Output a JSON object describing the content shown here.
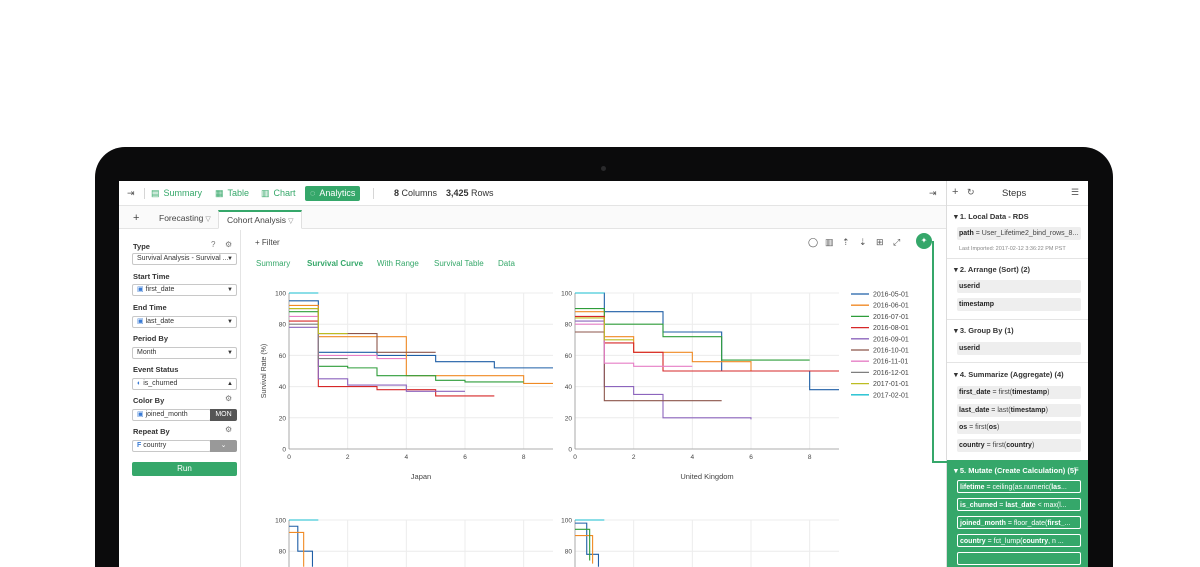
{
  "topbar": {
    "items": [
      {
        "label": "Summary",
        "icon": "summary-icon"
      },
      {
        "label": "Table",
        "icon": "table-icon"
      },
      {
        "label": "Chart",
        "icon": "chart-icon"
      },
      {
        "label": "Analytics",
        "icon": "lightbulb-icon"
      }
    ],
    "columns_count": "8",
    "columns_label": "Columns",
    "rows_count": "3,425",
    "rows_label": "Rows"
  },
  "tabs": {
    "add": "+",
    "items": [
      {
        "label": "Forecasting"
      },
      {
        "label": "Cohort Analysis"
      }
    ]
  },
  "left_panel": {
    "type_label": "Type",
    "type_value": "Survival Analysis - Survival ...",
    "start_label": "Start Time",
    "start_value": "first_date",
    "end_label": "End Time",
    "end_value": "last_date",
    "period_label": "Period By",
    "period_value": "Month",
    "event_label": "Event Status",
    "event_value": "is_churned",
    "color_label": "Color By",
    "color_value": "joined_month",
    "color_badge": "MON",
    "repeat_label": "Repeat By",
    "repeat_value": "country",
    "repeat_badge": "F",
    "run_label": "Run"
  },
  "main": {
    "filter_label": "Filter",
    "subtabs": [
      "Summary",
      "Survival Curve",
      "With Range",
      "Survival Table",
      "Data"
    ],
    "active_subtab": "Survival Curve"
  },
  "chart_data": {
    "type": "line",
    "ylabel": "Survival Rate (%)",
    "yticks": [
      0,
      20,
      40,
      60,
      80,
      100
    ],
    "xticks": [
      0,
      2,
      4,
      6,
      8
    ],
    "xlim": [
      0,
      9
    ],
    "ylim": [
      0,
      100
    ],
    "legend_position": "right",
    "legend": [
      {
        "name": "2016-05-01",
        "color": "#1f5fa6"
      },
      {
        "name": "2016-06-01",
        "color": "#f08a24"
      },
      {
        "name": "2016-07-01",
        "color": "#2e9d3a"
      },
      {
        "name": "2016-08-01",
        "color": "#d62728"
      },
      {
        "name": "2016-09-01",
        "color": "#8c64bd"
      },
      {
        "name": "2016-10-01",
        "color": "#8c564b"
      },
      {
        "name": "2016-11-01",
        "color": "#e67fc6"
      },
      {
        "name": "2016-12-01",
        "color": "#7f7f7f"
      },
      {
        "name": "2017-01-01",
        "color": "#bcbd22"
      },
      {
        "name": "2017-02-01",
        "color": "#17becf"
      }
    ],
    "panels": [
      {
        "label": "Japan",
        "series": [
          {
            "name": "2016-05-01",
            "color": "#1f5fa6",
            "points": [
              [
                0,
                95
              ],
              [
                1,
                62
              ],
              [
                3,
                60
              ],
              [
                5,
                56
              ],
              [
                6,
                56
              ],
              [
                7,
                52
              ],
              [
                9,
                52
              ]
            ]
          },
          {
            "name": "2016-06-01",
            "color": "#f08a24",
            "points": [
              [
                0,
                92
              ],
              [
                1,
                72
              ],
              [
                4,
                47
              ],
              [
                6,
                47
              ],
              [
                8,
                42
              ],
              [
                9,
                42
              ]
            ]
          },
          {
            "name": "2016-07-01",
            "color": "#2e9d3a",
            "points": [
              [
                0,
                88
              ],
              [
                1,
                53
              ],
              [
                2,
                52
              ],
              [
                3,
                47
              ],
              [
                5,
                44
              ],
              [
                6,
                43
              ],
              [
                8,
                43
              ]
            ]
          },
          {
            "name": "2016-08-01",
            "color": "#d62728",
            "points": [
              [
                0,
                82
              ],
              [
                1,
                40
              ],
              [
                2,
                40
              ],
              [
                3,
                38
              ],
              [
                5,
                34
              ],
              [
                7,
                34
              ]
            ]
          },
          {
            "name": "2016-09-01",
            "color": "#8c64bd",
            "points": [
              [
                0,
                78
              ],
              [
                1,
                45
              ],
              [
                2,
                41
              ],
              [
                3,
                41
              ],
              [
                4,
                37
              ],
              [
                6,
                37
              ]
            ]
          },
          {
            "name": "2016-10-01",
            "color": "#8c564b",
            "points": [
              [
                0,
                90
              ],
              [
                1,
                74
              ],
              [
                3,
                62
              ],
              [
                5,
                62
              ]
            ]
          },
          {
            "name": "2016-11-01",
            "color": "#e67fc6",
            "points": [
              [
                0,
                85
              ],
              [
                1,
                60
              ],
              [
                3,
                58
              ],
              [
                4,
                58
              ]
            ]
          },
          {
            "name": "2016-12-01",
            "color": "#7f7f7f",
            "points": [
              [
                0,
                80
              ],
              [
                1,
                58
              ],
              [
                2,
                58
              ]
            ]
          },
          {
            "name": "2017-01-01",
            "color": "#bcbd22",
            "points": [
              [
                0,
                90
              ],
              [
                1,
                74
              ],
              [
                2,
                74
              ]
            ]
          },
          {
            "name": "2017-02-01",
            "color": "#17becf",
            "points": [
              [
                0,
                100
              ],
              [
                1,
                100
              ]
            ]
          }
        ]
      },
      {
        "label": "United Kingdom",
        "series": [
          {
            "name": "2016-05-01",
            "color": "#1f5fa6",
            "points": [
              [
                0,
                100
              ],
              [
                1,
                88
              ],
              [
                2,
                88
              ],
              [
                3,
                75
              ],
              [
                5,
                50
              ],
              [
                8,
                38
              ],
              [
                9,
                38
              ]
            ]
          },
          {
            "name": "2016-06-01",
            "color": "#f08a24",
            "points": [
              [
                0,
                88
              ],
              [
                1,
                72
              ],
              [
                2,
                62
              ],
              [
                4,
                56
              ],
              [
                6,
                50
              ],
              [
                9,
                50
              ]
            ]
          },
          {
            "name": "2016-07-01",
            "color": "#2e9d3a",
            "points": [
              [
                0,
                90
              ],
              [
                1,
                80
              ],
              [
                2,
                80
              ],
              [
                3,
                72
              ],
              [
                5,
                57
              ],
              [
                8,
                57
              ]
            ]
          },
          {
            "name": "2016-08-01",
            "color": "#d62728",
            "points": [
              [
                0,
                85
              ],
              [
                1,
                68
              ],
              [
                2,
                62
              ],
              [
                3,
                50
              ],
              [
                9,
                50
              ]
            ]
          },
          {
            "name": "2016-09-01",
            "color": "#8c64bd",
            "points": [
              [
                0,
                82
              ],
              [
                1,
                40
              ],
              [
                2,
                35
              ],
              [
                3,
                20
              ],
              [
                6,
                19
              ]
            ]
          },
          {
            "name": "2016-10-01",
            "color": "#8c564b",
            "points": [
              [
                0,
                75
              ],
              [
                1,
                31
              ],
              [
                3,
                31
              ],
              [
                5,
                31
              ]
            ]
          },
          {
            "name": "2016-11-01",
            "color": "#e67fc6",
            "points": [
              [
                0,
                80
              ],
              [
                1,
                55
              ],
              [
                2,
                53
              ],
              [
                4,
                53
              ]
            ]
          },
          {
            "name": "2017-01-01",
            "color": "#bcbd22",
            "points": [
              [
                0,
                84
              ],
              [
                1,
                70
              ],
              [
                2,
                70
              ]
            ]
          },
          {
            "name": "2017-02-01",
            "color": "#17becf",
            "points": [
              [
                0,
                100
              ],
              [
                1,
                100
              ]
            ]
          }
        ]
      },
      {
        "label": "",
        "series": [
          {
            "name": "2016-05-01",
            "color": "#1f5fa6",
            "points": [
              [
                0,
                96
              ],
              [
                0.3,
                80
              ],
              [
                0.8,
                70
              ]
            ]
          },
          {
            "name": "2016-06-01",
            "color": "#f08a24",
            "points": [
              [
                0,
                92
              ],
              [
                0.5,
                70
              ]
            ]
          },
          {
            "name": "2017-02-01",
            "color": "#17becf",
            "points": [
              [
                0,
                100
              ],
              [
                1,
                100
              ]
            ]
          }
        ]
      },
      {
        "label": "",
        "series": [
          {
            "name": "2016-05-01",
            "color": "#1f5fa6",
            "points": [
              [
                0,
                98
              ],
              [
                0.4,
                78
              ],
              [
                0.8,
                70
              ]
            ]
          },
          {
            "name": "2016-06-01",
            "color": "#f08a24",
            "points": [
              [
                0,
                90
              ],
              [
                0.6,
                72
              ]
            ]
          },
          {
            "name": "2016-07-01",
            "color": "#2e9d3a",
            "points": [
              [
                0,
                94
              ],
              [
                0.5,
                74
              ]
            ]
          },
          {
            "name": "2017-02-01",
            "color": "#17becf",
            "points": [
              [
                0,
                100
              ],
              [
                1,
                100
              ]
            ]
          }
        ]
      }
    ]
  },
  "steps": {
    "title": "Steps",
    "groups": [
      {
        "title": "1. Local Data - RDS",
        "lines": [
          {
            "k": "path",
            "op": " = ",
            "v": "User_Lifetime2_bind_rows_8..."
          }
        ],
        "note": "Last Imported: 2017-02-12 3:36:22 PM PST"
      },
      {
        "title": "2. Arrange (Sort) (2)",
        "lines": [
          {
            "k": "userid",
            "op": "",
            "v": ""
          },
          {
            "k": "timestamp",
            "op": "",
            "v": ""
          }
        ]
      },
      {
        "title": "3. Group By (1)",
        "lines": [
          {
            "k": "userid",
            "op": "",
            "v": ""
          }
        ]
      },
      {
        "title": "4. Summarize (Aggregate) (4)",
        "lines": [
          {
            "k": "first_date",
            "op": " = first(",
            "v": "timestamp",
            "end": ")"
          },
          {
            "k": "last_date",
            "op": " = last(",
            "v": "timestamp",
            "end": ")"
          },
          {
            "k": "os",
            "op": " = first(",
            "v": "os",
            "end": ")"
          },
          {
            "k": "country",
            "op": " = first(",
            "v": "country",
            "end": ")"
          }
        ]
      },
      {
        "title": "5. Mutate (Create Calculation) (5)",
        "lines": [
          {
            "k": "lifetime",
            "op": " = ceiling(as.numeric(",
            "v": "las",
            "end": "..."
          },
          {
            "k": "is_churned",
            "op": " = ",
            "v": "last_date",
            "end": " < max(l..."
          },
          {
            "k": "joined_month",
            "op": " = floor_date(",
            "v": "first_",
            "end": "..."
          },
          {
            "k": "country",
            "op": " = fct_lump(",
            "v": "country",
            "end": ", n ..."
          }
        ]
      }
    ]
  }
}
